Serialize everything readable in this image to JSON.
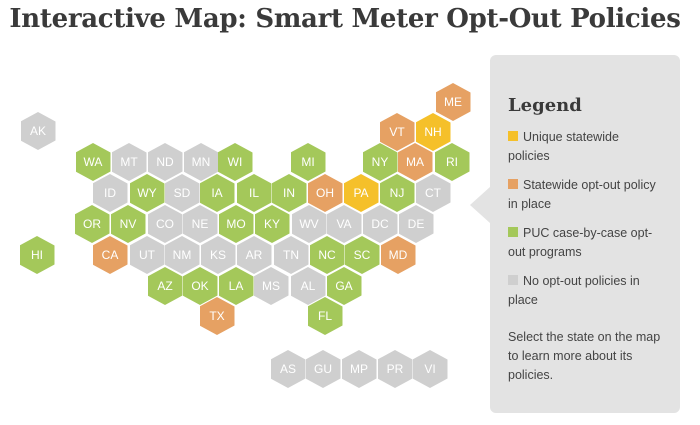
{
  "title": "Interactive Map: Smart Meter Opt-Out Policies",
  "colors": {
    "yellow": "#f5c02a",
    "orange": "#e6a163",
    "green": "#a4c85a",
    "gray": "#cfcfcf"
  },
  "legend": {
    "title": "Legend",
    "items": [
      {
        "label": "Unique statewide policies",
        "color": "yellow"
      },
      {
        "label": "Statewide opt-out policy in place",
        "color": "orange"
      },
      {
        "label": "PUC case-by-case opt-out programs",
        "color": "green"
      },
      {
        "label": "No opt-out policies in place",
        "color": "gray"
      }
    ],
    "note": "Select the state on the map to learn more about its policies."
  },
  "states": [
    {
      "abbr": "ME",
      "category": "orange"
    },
    {
      "abbr": "VT",
      "category": "orange"
    },
    {
      "abbr": "NH",
      "category": "yellow"
    },
    {
      "abbr": "AK",
      "category": "gray"
    },
    {
      "abbr": "WA",
      "category": "green"
    },
    {
      "abbr": "MT",
      "category": "gray"
    },
    {
      "abbr": "ND",
      "category": "gray"
    },
    {
      "abbr": "MN",
      "category": "gray"
    },
    {
      "abbr": "WI",
      "category": "green"
    },
    {
      "abbr": "MI",
      "category": "green"
    },
    {
      "abbr": "NY",
      "category": "green"
    },
    {
      "abbr": "MA",
      "category": "orange"
    },
    {
      "abbr": "RI",
      "category": "green"
    },
    {
      "abbr": "ID",
      "category": "gray"
    },
    {
      "abbr": "WY",
      "category": "green"
    },
    {
      "abbr": "SD",
      "category": "gray"
    },
    {
      "abbr": "IA",
      "category": "green"
    },
    {
      "abbr": "IL",
      "category": "green"
    },
    {
      "abbr": "IN",
      "category": "green"
    },
    {
      "abbr": "OH",
      "category": "orange"
    },
    {
      "abbr": "PA",
      "category": "yellow"
    },
    {
      "abbr": "NJ",
      "category": "green"
    },
    {
      "abbr": "CT",
      "category": "gray"
    },
    {
      "abbr": "OR",
      "category": "green"
    },
    {
      "abbr": "NV",
      "category": "green"
    },
    {
      "abbr": "CO",
      "category": "gray"
    },
    {
      "abbr": "NE",
      "category": "gray"
    },
    {
      "abbr": "MO",
      "category": "green"
    },
    {
      "abbr": "KY",
      "category": "green"
    },
    {
      "abbr": "WV",
      "category": "gray"
    },
    {
      "abbr": "VA",
      "category": "gray"
    },
    {
      "abbr": "DC",
      "category": "gray"
    },
    {
      "abbr": "DE",
      "category": "gray"
    },
    {
      "abbr": "HI",
      "category": "green"
    },
    {
      "abbr": "CA",
      "category": "orange"
    },
    {
      "abbr": "UT",
      "category": "gray"
    },
    {
      "abbr": "NM",
      "category": "gray"
    },
    {
      "abbr": "KS",
      "category": "gray"
    },
    {
      "abbr": "AR",
      "category": "gray"
    },
    {
      "abbr": "TN",
      "category": "gray"
    },
    {
      "abbr": "NC",
      "category": "green"
    },
    {
      "abbr": "SC",
      "category": "green"
    },
    {
      "abbr": "MD",
      "category": "orange"
    },
    {
      "abbr": "AZ",
      "category": "green"
    },
    {
      "abbr": "OK",
      "category": "green"
    },
    {
      "abbr": "LA",
      "category": "green"
    },
    {
      "abbr": "MS",
      "category": "gray"
    },
    {
      "abbr": "AL",
      "category": "gray"
    },
    {
      "abbr": "GA",
      "category": "green"
    },
    {
      "abbr": "TX",
      "category": "orange"
    },
    {
      "abbr": "FL",
      "category": "green"
    },
    {
      "abbr": "AS",
      "category": "gray"
    },
    {
      "abbr": "GU",
      "category": "gray"
    },
    {
      "abbr": "MP",
      "category": "gray"
    },
    {
      "abbr": "PR",
      "category": "gray"
    },
    {
      "abbr": "VI",
      "category": "gray"
    }
  ]
}
